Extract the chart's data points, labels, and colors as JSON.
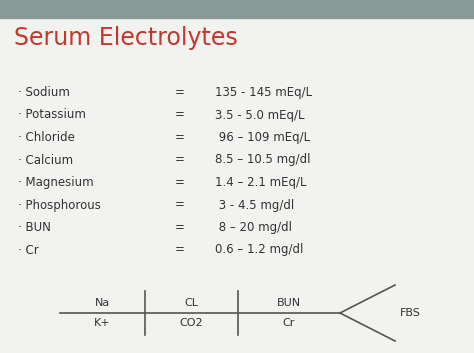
{
  "title": "Serum Electrolytes",
  "title_color": "#c0392b",
  "background_top": "#8a9a96",
  "background_main": "#f2f2f0",
  "items": [
    {
      "name": "Sodium",
      "eq": "=",
      "value": "135 - 145 mEq/L"
    },
    {
      "name": "Potassium",
      "eq": "=",
      "value": "3.5 - 5.0 mEq/L"
    },
    {
      "name": "Chloride",
      "eq": "=",
      "value": " 96 – 109 mEq/L"
    },
    {
      "name": "Calcium",
      "eq": "=",
      "value": "8.5 – 10.5 mg/dl"
    },
    {
      "name": "Magnesium",
      "eq": "=",
      "value": "1.4 – 2.1 mEq/L"
    },
    {
      "name": "Phosphorous",
      "eq": "=",
      "value": " 3 - 4.5 mg/dl"
    },
    {
      "name": "BUN",
      "eq": "=",
      "value": " 8 – 20 mg/dl"
    },
    {
      "name": "Cr",
      "eq": "=",
      "value": "0.6 – 1.2 mg/dl"
    }
  ],
  "bullet": "·",
  "text_color": "#333333",
  "diagram": {
    "na": "Na",
    "k": "K+",
    "cl": "CL",
    "co2": "CO2",
    "bun": "BUN",
    "cr": "Cr",
    "fbs": "FBS"
  },
  "fig_width": 4.74,
  "fig_height": 3.53,
  "dpi": 100
}
